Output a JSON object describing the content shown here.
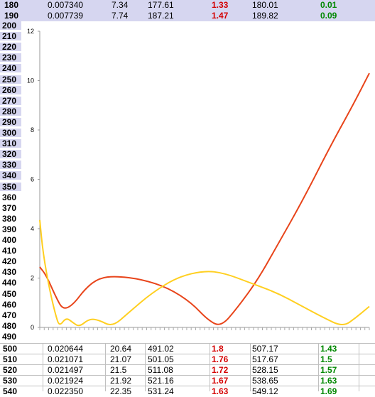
{
  "top_rows": [
    {
      "id": "180",
      "a": "0.007340",
      "b": "7.34",
      "c": "177.61",
      "d": "1.33",
      "e": "180.01",
      "f": "0.01"
    },
    {
      "id": "190",
      "a": "0.007739",
      "b": "7.74",
      "c": "187.21",
      "d": "1.47",
      "e": "189.82",
      "f": "0.09"
    }
  ],
  "left_labels": [
    "200",
    "210",
    "220",
    "230",
    "240",
    "250",
    "260",
    "270",
    "280",
    "290",
    "300",
    "310",
    "320",
    "330",
    "340",
    "350",
    "360",
    "370",
    "380",
    "390",
    "400",
    "410",
    "420",
    "430",
    "440",
    "450",
    "460",
    "470",
    "480",
    "490"
  ],
  "chart_data": {
    "type": "line",
    "y_ticks": [
      "0",
      "2",
      "4",
      "6",
      "8",
      "10",
      "12"
    ],
    "ylim": [
      0,
      12
    ],
    "grid": false,
    "series": [
      {
        "color": "#e8441a",
        "values": [
          [
            0,
            2.45
          ],
          [
            0.02,
            2.1
          ],
          [
            0.05,
            1.2
          ],
          [
            0.07,
            0.72
          ],
          [
            0.1,
            0.9
          ],
          [
            0.14,
            1.6
          ],
          [
            0.18,
            2.0
          ],
          [
            0.23,
            2.08
          ],
          [
            0.31,
            1.95
          ],
          [
            0.39,
            1.6
          ],
          [
            0.46,
            1.0
          ],
          [
            0.51,
            0.3
          ],
          [
            0.55,
            0.02
          ],
          [
            0.6,
            0.8
          ],
          [
            0.66,
            1.9
          ],
          [
            0.72,
            3.3
          ],
          [
            0.8,
            5.2
          ],
          [
            0.88,
            7.3
          ],
          [
            0.95,
            9.0
          ],
          [
            1.0,
            10.3
          ]
        ]
      },
      {
        "color": "#ffcf20",
        "values": [
          [
            0,
            4.35
          ],
          [
            0.01,
            3.0
          ],
          [
            0.03,
            1.5
          ],
          [
            0.05,
            0.4
          ],
          [
            0.06,
            0.05
          ],
          [
            0.08,
            0.4
          ],
          [
            0.1,
            0.2
          ],
          [
            0.12,
            0.02
          ],
          [
            0.15,
            0.35
          ],
          [
            0.18,
            0.3
          ],
          [
            0.22,
            0.02
          ],
          [
            0.27,
            0.6
          ],
          [
            0.34,
            1.4
          ],
          [
            0.42,
            2.05
          ],
          [
            0.5,
            2.3
          ],
          [
            0.56,
            2.2
          ],
          [
            0.64,
            1.8
          ],
          [
            0.72,
            1.4
          ],
          [
            0.79,
            0.9
          ],
          [
            0.86,
            0.4
          ],
          [
            0.92,
            0.02
          ],
          [
            0.96,
            0.4
          ],
          [
            1.0,
            0.85
          ]
        ]
      }
    ]
  },
  "bottom_rows": [
    {
      "id": "500",
      "a": "0.020644",
      "b": "20.64",
      "c": "491.02",
      "d": "1.8",
      "e": "507.17",
      "f": "1.43"
    },
    {
      "id": "510",
      "a": "0.021071",
      "b": "21.07",
      "c": "501.05",
      "d": "1.76",
      "e": "517.67",
      "f": "1.5"
    },
    {
      "id": "520",
      "a": "0.021497",
      "b": "21.5",
      "c": "511.08",
      "d": "1.72",
      "e": "528.15",
      "f": "1.57"
    },
    {
      "id": "530",
      "a": "0.021924",
      "b": "21.92",
      "c": "521.16",
      "d": "1.67",
      "e": "538.65",
      "f": "1.63"
    },
    {
      "id": "540",
      "a": "0.022350",
      "b": "22.35",
      "c": "531.24",
      "d": "1.63",
      "e": "549.12",
      "f": "1.69"
    }
  ]
}
